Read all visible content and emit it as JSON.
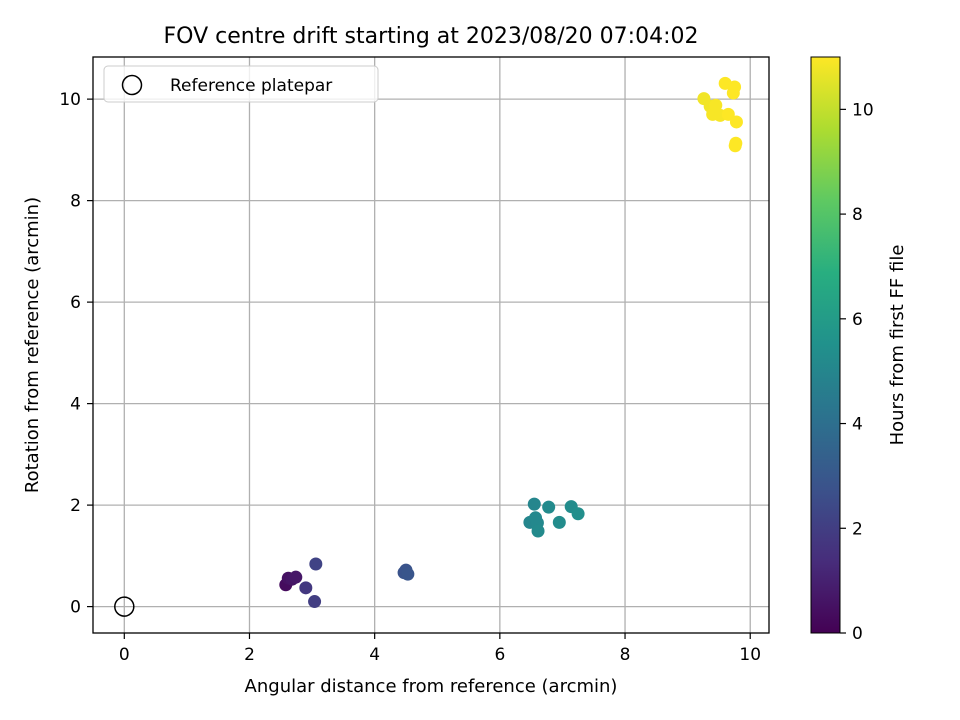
{
  "chart_data": {
    "type": "scatter",
    "title": "FOV centre drift starting at 2023/08/20 07:04:02",
    "xlabel": "Angular distance from reference (arcmin)",
    "ylabel": "Rotation from reference (arcmin)",
    "xlim": [
      -0.5,
      10.3
    ],
    "ylim": [
      -0.52,
      10.83
    ],
    "xticks": [
      0,
      2,
      4,
      6,
      8,
      10
    ],
    "yticks": [
      0,
      2,
      4,
      6,
      8,
      10
    ],
    "grid": true,
    "legend": {
      "placement": "upper-left",
      "entries": [
        "Reference platepar"
      ]
    },
    "reference_point": {
      "x": 0,
      "y": 0,
      "label": "Reference platepar"
    },
    "colorbar": {
      "label": "Hours from first FF file",
      "colormap": "viridis",
      "range": [
        0,
        11
      ],
      "ticks": [
        0,
        2,
        4,
        6,
        8,
        10
      ]
    },
    "points": [
      {
        "x": 2.58,
        "y": 0.43,
        "hours": 0.3
      },
      {
        "x": 2.62,
        "y": 0.56,
        "hours": 0.5
      },
      {
        "x": 2.68,
        "y": 0.54,
        "hours": 0.6
      },
      {
        "x": 2.74,
        "y": 0.58,
        "hours": 0.7
      },
      {
        "x": 2.9,
        "y": 0.37,
        "hours": 1.8
      },
      {
        "x": 3.04,
        "y": 0.1,
        "hours": 2.0
      },
      {
        "x": 3.06,
        "y": 0.84,
        "hours": 2.2
      },
      {
        "x": 4.47,
        "y": 0.67,
        "hours": 2.8
      },
      {
        "x": 4.5,
        "y": 0.72,
        "hours": 2.8
      },
      {
        "x": 4.53,
        "y": 0.64,
        "hours": 2.9
      },
      {
        "x": 6.48,
        "y": 1.66,
        "hours": 5.0
      },
      {
        "x": 6.55,
        "y": 2.02,
        "hours": 5.0
      },
      {
        "x": 6.57,
        "y": 1.75,
        "hours": 5.1
      },
      {
        "x": 6.6,
        "y": 1.65,
        "hours": 5.1
      },
      {
        "x": 6.61,
        "y": 1.49,
        "hours": 5.2
      },
      {
        "x": 6.78,
        "y": 1.96,
        "hours": 5.2
      },
      {
        "x": 6.95,
        "y": 1.66,
        "hours": 5.3
      },
      {
        "x": 7.14,
        "y": 1.97,
        "hours": 5.3
      },
      {
        "x": 7.25,
        "y": 1.83,
        "hours": 5.4
      },
      {
        "x": 9.26,
        "y": 10.01,
        "hours": 10.8
      },
      {
        "x": 9.36,
        "y": 9.86,
        "hours": 10.8
      },
      {
        "x": 9.4,
        "y": 9.7,
        "hours": 10.9
      },
      {
        "x": 9.45,
        "y": 9.88,
        "hours": 10.9
      },
      {
        "x": 9.52,
        "y": 9.68,
        "hours": 10.9
      },
      {
        "x": 9.6,
        "y": 10.31,
        "hours": 11.0
      },
      {
        "x": 9.65,
        "y": 9.7,
        "hours": 11.0
      },
      {
        "x": 9.73,
        "y": 10.12,
        "hours": 11.0
      },
      {
        "x": 9.75,
        "y": 10.24,
        "hours": 11.0
      },
      {
        "x": 9.76,
        "y": 9.08,
        "hours": 11.0
      },
      {
        "x": 9.77,
        "y": 9.13,
        "hours": 11.0
      },
      {
        "x": 9.78,
        "y": 9.55,
        "hours": 11.0
      }
    ]
  }
}
